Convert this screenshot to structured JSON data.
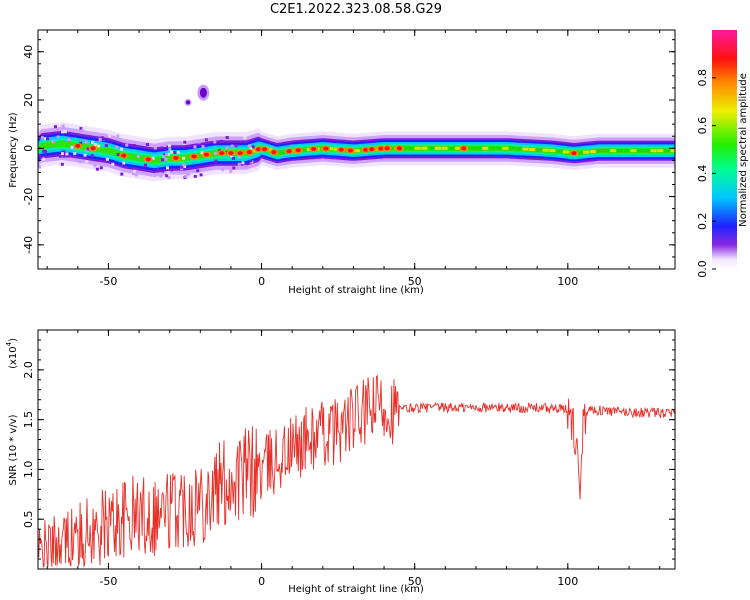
{
  "figure_title": "C2E1.2022.323.08.58.G29",
  "chart_data": [
    {
      "type": "heatmap",
      "xlabel": "Height of straight line (km)",
      "ylabel": "Frequency (Hz)",
      "xlim": [
        -73,
        135
      ],
      "ylim": [
        -50,
        49
      ],
      "x_ticks": [
        -50,
        0,
        50,
        100
      ],
      "y_ticks": [
        -40,
        -20,
        0,
        20,
        40
      ],
      "colorbar": {
        "label": "Normalized spectral amplitude",
        "range": [
          0.0,
          1.0
        ],
        "ticks": [
          0.0,
          0.2,
          0.4,
          0.6,
          0.8
        ]
      },
      "ridge": [
        {
          "x": -72,
          "y": 1
        },
        {
          "x": -65,
          "y": 2
        },
        {
          "x": -60,
          "y": 1
        },
        {
          "x": -55,
          "y": 0
        },
        {
          "x": -50,
          "y": -1
        },
        {
          "x": -45,
          "y": -3
        },
        {
          "x": -40,
          "y": -4
        },
        {
          "x": -35,
          "y": -5
        },
        {
          "x": -30,
          "y": -4
        },
        {
          "x": -25,
          "y": -4
        },
        {
          "x": -20,
          "y": -3
        },
        {
          "x": -15,
          "y": -2
        },
        {
          "x": -10,
          "y": -2
        },
        {
          "x": -5,
          "y": -2
        },
        {
          "x": 0,
          "y": 0
        },
        {
          "x": 5,
          "y": -2
        },
        {
          "x": 10,
          "y": -1
        },
        {
          "x": 20,
          "y": 0
        },
        {
          "x": 30,
          "y": -1
        },
        {
          "x": 40,
          "y": 0
        },
        {
          "x": 50,
          "y": 0
        },
        {
          "x": 65,
          "y": 0
        },
        {
          "x": 80,
          "y": 0
        },
        {
          "x": 95,
          "y": -1
        },
        {
          "x": 102,
          "y": -2
        },
        {
          "x": 110,
          "y": -1
        },
        {
          "x": 120,
          "y": -1
        },
        {
          "x": 135,
          "y": -1
        }
      ],
      "peaks": [
        -60,
        -55,
        -45,
        -37,
        -28,
        -22,
        -18,
        -13,
        -10,
        -7,
        -4,
        -1,
        1,
        4,
        9,
        12,
        17,
        21,
        26,
        29,
        34,
        36,
        39,
        41,
        45,
        66,
        102
      ],
      "features": [
        {
          "x": -19,
          "y": 23
        },
        {
          "x": -24,
          "y": 19
        }
      ]
    },
    {
      "type": "line",
      "xlabel": "Height of straight line (km)",
      "ylabel": "SNR (10 * v/v)",
      "y_multiplier": "(x10",
      "y_multiplier_exp": "4",
      "y_multiplier_close": ")",
      "xlim": [
        -73,
        135
      ],
      "ylim": [
        0.0,
        2.4
      ],
      "x_ticks": [
        -50,
        0,
        50,
        100
      ],
      "y_ticks": [
        0.5,
        1.0,
        1.5,
        2.0
      ],
      "series": [
        {
          "color": "#e8302a",
          "x": [
            -73,
            -70,
            -65,
            -60,
            -55,
            -50,
            -45,
            -40,
            -35,
            -30,
            -25,
            -20,
            -15,
            -10,
            -5,
            0,
            5,
            10,
            15,
            20,
            25,
            30,
            33,
            36,
            39,
            42,
            45,
            50,
            55,
            60,
            70,
            80,
            90,
            100,
            103,
            104,
            105,
            108,
            115,
            125,
            135
          ],
          "y": [
            0.1,
            0.15,
            0.25,
            0.3,
            0.35,
            0.45,
            0.5,
            0.55,
            0.55,
            0.6,
            0.65,
            0.7,
            0.8,
            0.9,
            0.95,
            1.0,
            1.1,
            1.2,
            1.3,
            1.35,
            1.4,
            1.5,
            1.55,
            1.6,
            1.65,
            1.6,
            1.6,
            1.62,
            1.62,
            1.62,
            1.62,
            1.62,
            1.62,
            1.6,
            1.3,
            0.7,
            1.6,
            1.6,
            1.58,
            1.57,
            1.56
          ]
        }
      ]
    }
  ]
}
